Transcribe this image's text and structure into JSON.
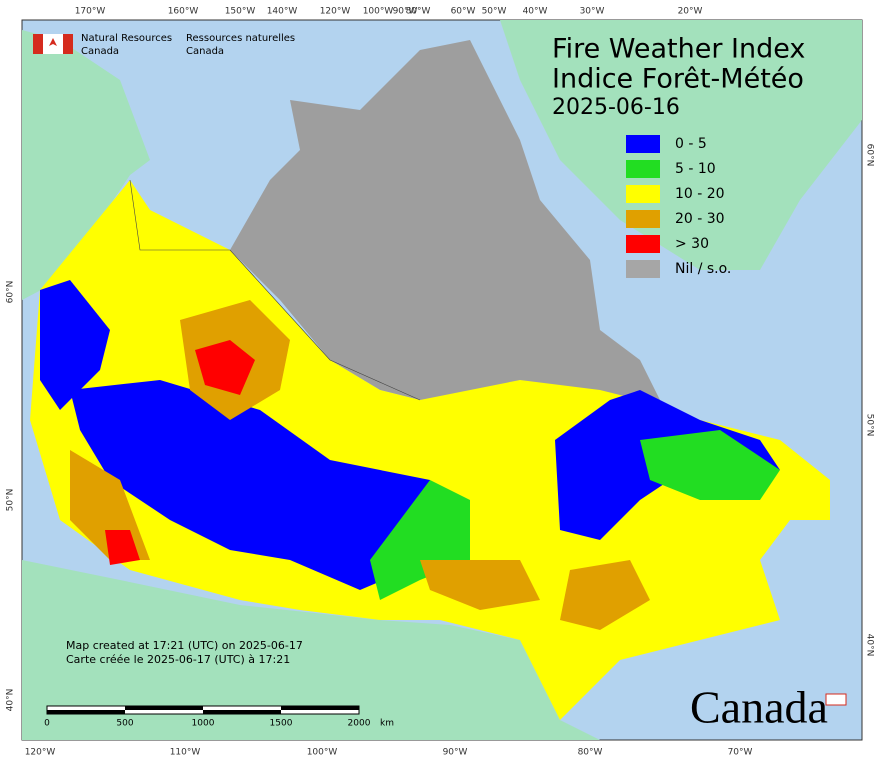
{
  "header": {
    "agency_en": [
      "Natural Resources",
      "Canada"
    ],
    "agency_fr": [
      "Ressources naturelles",
      "Canada"
    ]
  },
  "title": [
    "Fire Weather Index",
    "Indice Forêt-Météo"
  ],
  "date": "2025-06-16",
  "legend": [
    {
      "label": "0 - 5",
      "color": "#0000ff"
    },
    {
      "label": "5 - 10",
      "color": "#22dd22"
    },
    {
      "label": "10 - 20",
      "color": "#ffff00"
    },
    {
      "label": "20 - 30",
      "color": "#e0a000"
    },
    {
      "label": "> 30",
      "color": "#ff0000"
    },
    {
      "label": "Nil / s.o.",
      "color": "#a6a6a6"
    }
  ],
  "graticule": {
    "top": [
      "170°W",
      "160°W",
      "150°W",
      "140°W",
      "120°W",
      "100°W",
      "90°W",
      "80°W",
      "60°W",
      "50°W",
      "40°W",
      "30°W",
      "20°W"
    ],
    "bottom": [
      "120°W",
      "110°W",
      "100°W",
      "90°W",
      "80°W",
      "70°W"
    ],
    "left": [
      "60°N",
      "50°N",
      "40°N"
    ],
    "right": [
      "60°N",
      "50°N",
      "40°N"
    ]
  },
  "footer": [
    "Map created at 17:21 (UTC) on 2025-06-17",
    "Carte créée le 2025-06-17 (UTC) à 17:21"
  ],
  "scale": [
    "0",
    "500",
    "1000",
    "1500",
    "2000",
    "km"
  ],
  "wordmark": "Canada"
}
